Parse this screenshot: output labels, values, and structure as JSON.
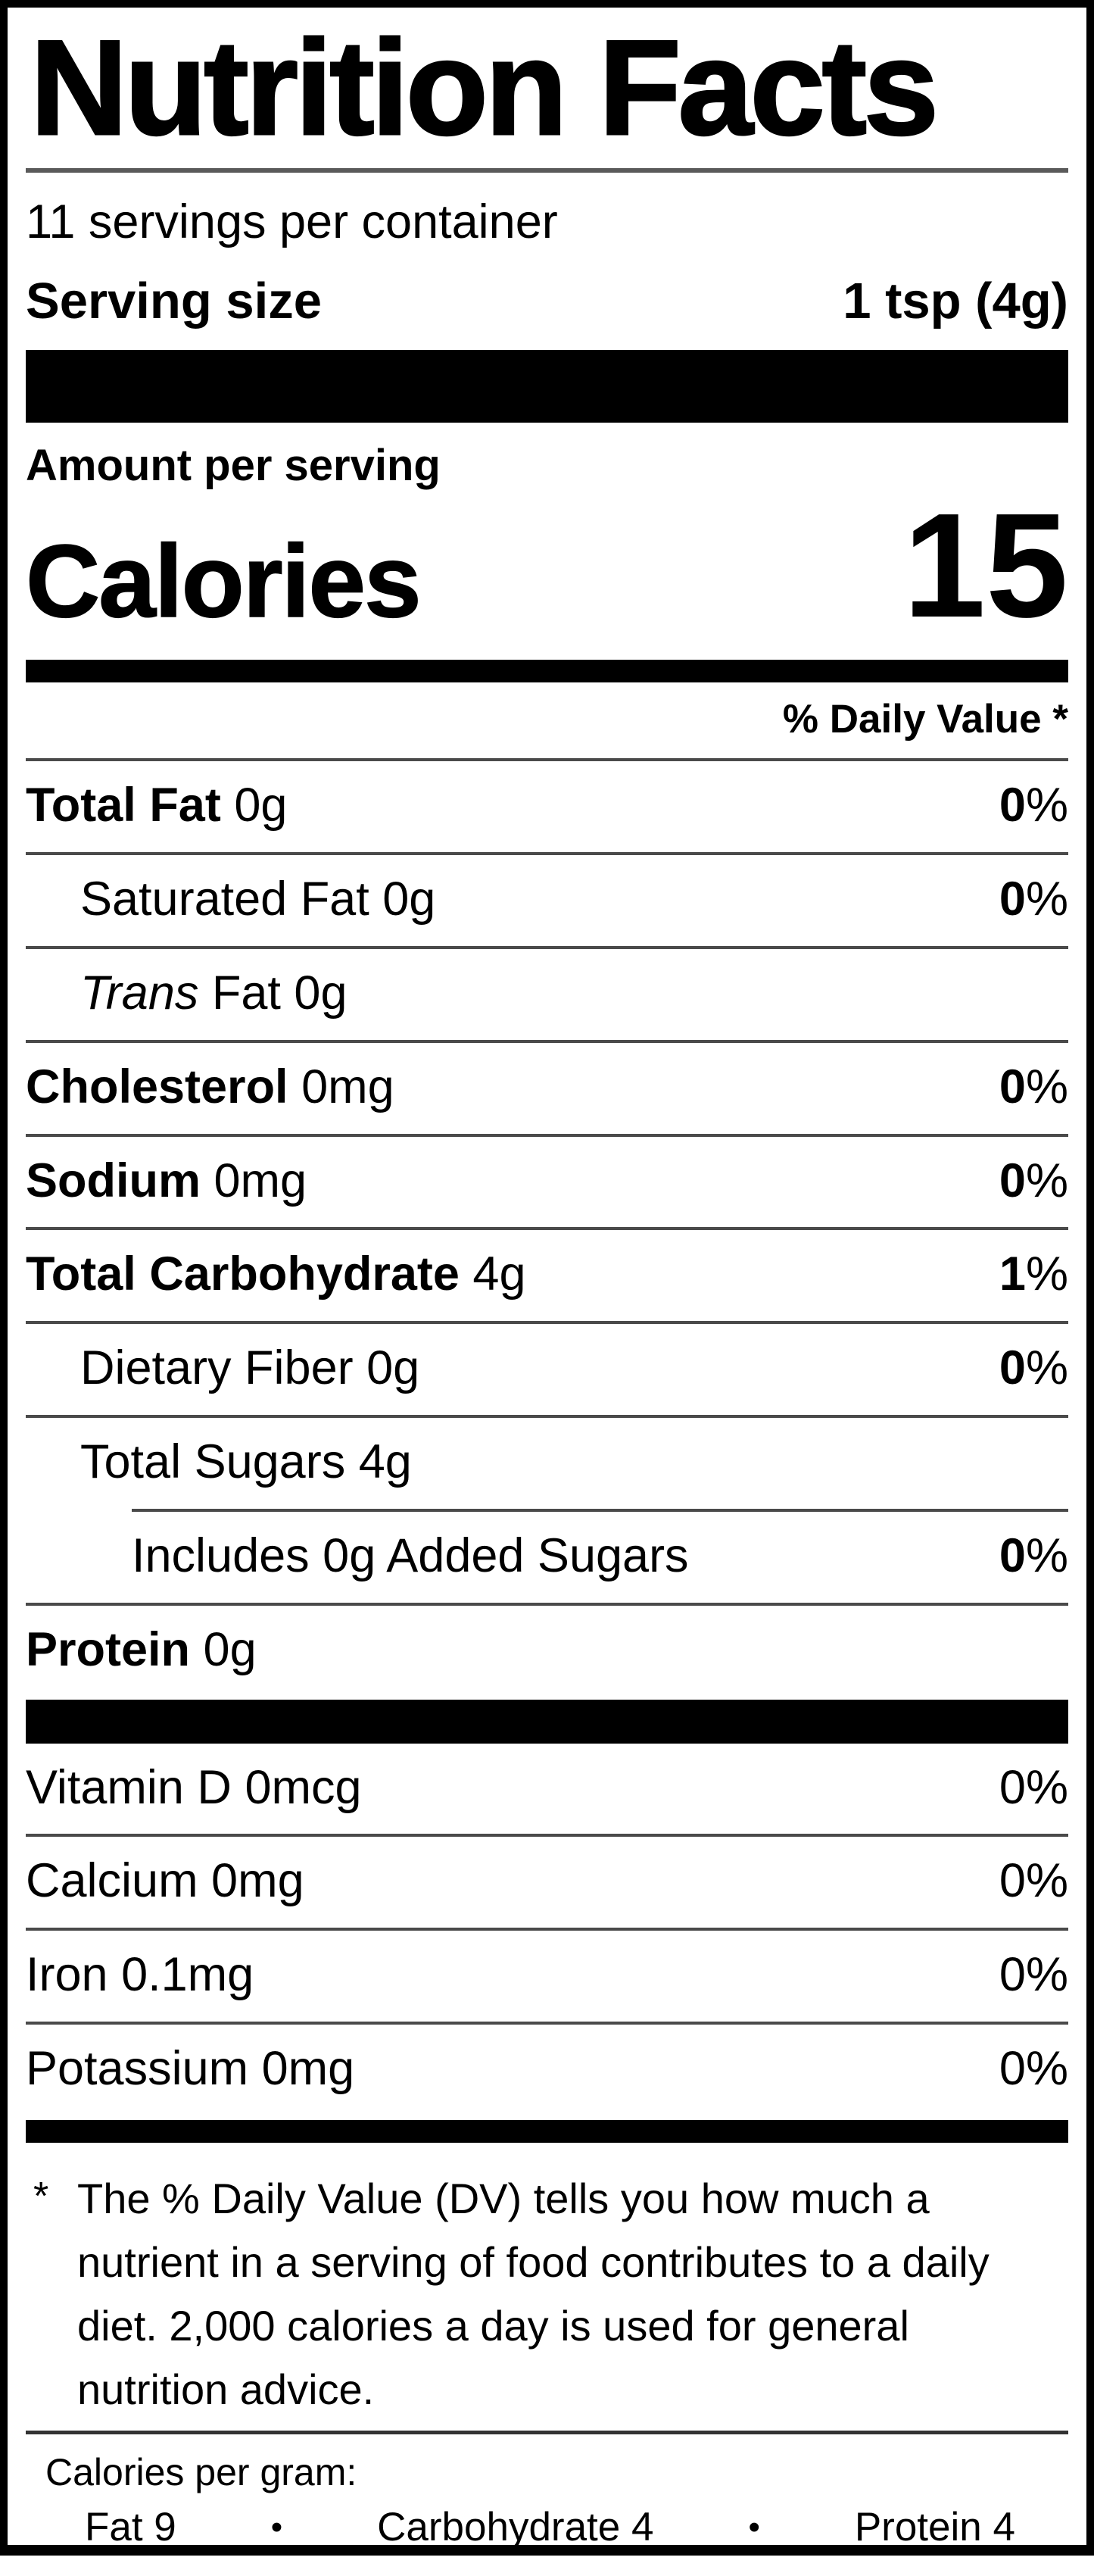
{
  "label": {
    "title": "Nutrition Facts",
    "servings_per_container": "11 servings per container",
    "serving_size_label": "Serving size",
    "serving_size_value": "1 tsp (4g)",
    "amount_per_serving": "Amount per serving",
    "calories_label": "Calories",
    "calories_value": "15",
    "daily_value_header": "% Daily Value *",
    "nutrients": [
      {
        "name": "Total Fat",
        "amount": "0g",
        "dv": "0%",
        "name_bold": true,
        "dv_bold": true,
        "indent": 0,
        "rule": "full"
      },
      {
        "name": "Saturated Fat",
        "amount": "0g",
        "dv": "0%",
        "name_bold": false,
        "dv_bold": true,
        "indent": 1,
        "rule": "full"
      },
      {
        "name": "Trans Fat",
        "italic_prefix": "Trans",
        "amount": "0g",
        "dv": null,
        "name_bold": false,
        "indent": 1,
        "rule": "full"
      },
      {
        "name": "Cholesterol",
        "amount": "0mg",
        "dv": "0%",
        "name_bold": true,
        "dv_bold": true,
        "indent": 0,
        "rule": "full"
      },
      {
        "name": "Sodium",
        "amount": "0mg",
        "dv": "0%",
        "name_bold": true,
        "dv_bold": true,
        "indent": 0,
        "rule": "full"
      },
      {
        "name": "Total Carbohydrate",
        "amount": "4g",
        "dv": "1%",
        "name_bold": true,
        "dv_bold": true,
        "indent": 0,
        "rule": "full"
      },
      {
        "name": "Dietary Fiber",
        "amount": "0g",
        "dv": "0%",
        "name_bold": false,
        "dv_bold": true,
        "indent": 1,
        "rule": "full"
      },
      {
        "name": "Total Sugars",
        "amount": "4g",
        "dv": null,
        "name_bold": false,
        "indent": 1,
        "rule": "full"
      },
      {
        "name": "Includes 0g Added Sugars",
        "amount": "",
        "dv": "0%",
        "name_bold": false,
        "dv_bold": true,
        "indent": 2,
        "rule": "partial"
      },
      {
        "name": "Protein",
        "amount": "0g",
        "dv": null,
        "name_bold": true,
        "indent": 0,
        "rule": "full"
      }
    ],
    "vitamins": [
      {
        "name": "Vitamin D",
        "amount": "0mcg",
        "dv": "0%",
        "name_bold": false,
        "dv_bold": false,
        "indent": 0
      },
      {
        "name": "Calcium",
        "amount": "0mg",
        "dv": "0%",
        "name_bold": false,
        "dv_bold": false,
        "indent": 0
      },
      {
        "name": "Iron",
        "amount": "0.1mg",
        "dv": "0%",
        "name_bold": false,
        "dv_bold": false,
        "indent": 0
      },
      {
        "name": "Potassium",
        "amount": "0mg",
        "dv": "0%",
        "name_bold": false,
        "dv_bold": false,
        "indent": 0
      }
    ],
    "footnote_marker": "*",
    "footnote": "The % Daily Value (DV) tells you how much a nutrient in a serving of food contributes to a daily diet. 2,000 calories a day is used for general nutrition advice.",
    "calories_per_gram_label": "Calories per gram:",
    "calories_per_gram": [
      {
        "name": "Fat",
        "value": "9"
      },
      {
        "name": "Carbohydrate",
        "value": "4"
      },
      {
        "name": "Protein",
        "value": "4"
      }
    ],
    "bullet": "•"
  },
  "colors": {
    "text": "#000000",
    "background": "#ffffff",
    "hairline": "#4a4a4a",
    "thick_bar": "#000000"
  }
}
